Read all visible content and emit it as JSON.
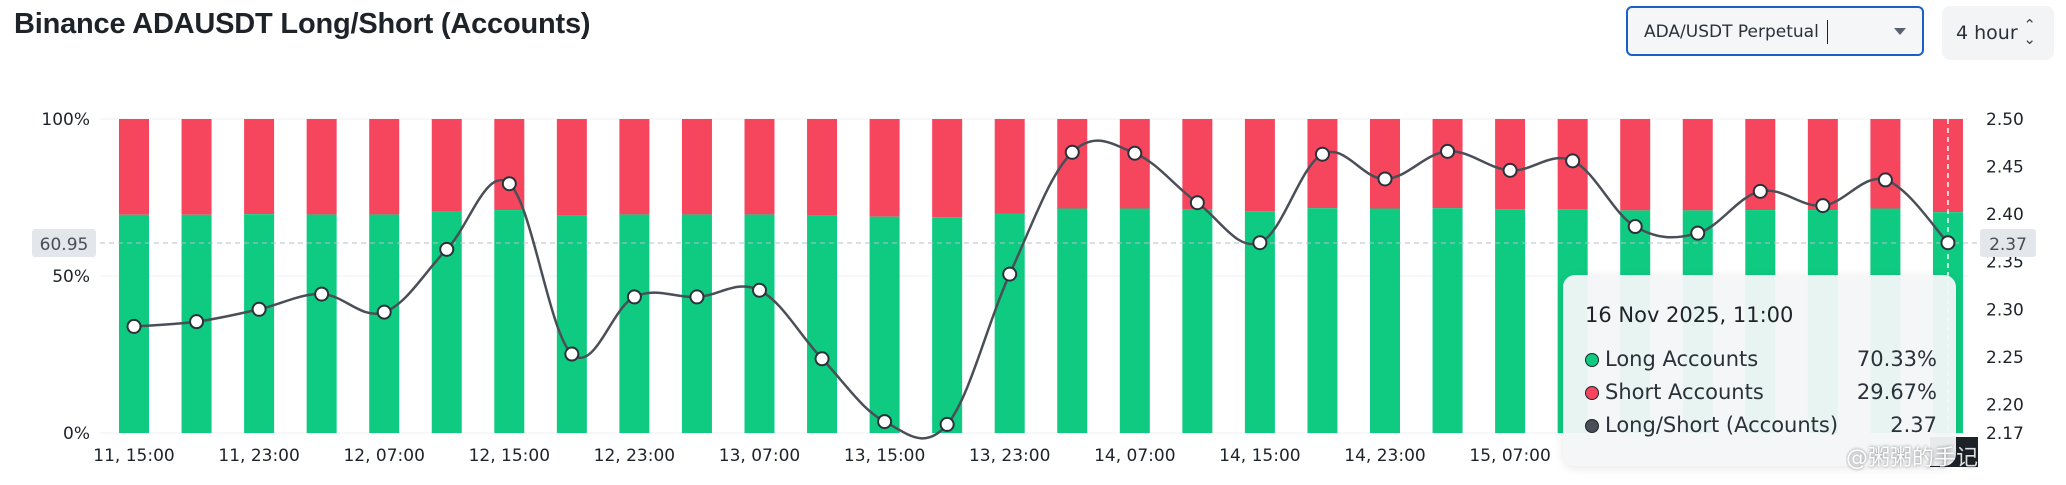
{
  "page": {
    "title": "Binance ADAUSDT Long/Short (Accounts)"
  },
  "controls": {
    "symbol_select": "ADA/USDT Perpetual",
    "interval_select": "4 hour"
  },
  "colors": {
    "long": "#0ecb81",
    "short": "#f6465d",
    "ratio_line": "#4a4f57",
    "axis_text": "#1e2329"
  },
  "chart_data": {
    "type": "bar",
    "stacked": true,
    "title": "",
    "left_axis": {
      "ticks": [
        "0%",
        "50%",
        "100%"
      ],
      "ylim": [
        0,
        100
      ]
    },
    "right_axis": {
      "ticks": [
        "2.17",
        "2.20",
        "2.25",
        "2.30",
        "2.35",
        "2.40",
        "2.45",
        "2.50"
      ],
      "ylim": [
        2.17,
        2.5
      ]
    },
    "x_tick_labels": [
      "11, 15:00",
      "11, 23:00",
      "12, 07:00",
      "12, 15:00",
      "12, 23:00",
      "13, 07:00",
      "13, 15:00",
      "13, 23:00",
      "14, 07:00",
      "14, 15:00",
      "14, 23:00",
      "15, 07:00"
    ],
    "categories": [
      "11, 15:00",
      "11, 19:00",
      "11, 23:00",
      "12, 03:00",
      "12, 07:00",
      "12, 11:00",
      "12, 15:00",
      "12, 19:00",
      "12, 23:00",
      "13, 03:00",
      "13, 07:00",
      "13, 11:00",
      "13, 15:00",
      "13, 19:00",
      "13, 23:00",
      "14, 03:00",
      "14, 07:00",
      "14, 11:00",
      "14, 15:00",
      "14, 19:00",
      "14, 23:00",
      "15, 03:00",
      "15, 07:00",
      "15, 11:00",
      "15, 15:00",
      "15, 19:00",
      "15, 23:00",
      "16, 03:00",
      "16, 07:00",
      "16, 11:00"
    ],
    "series": [
      {
        "name": "Long Accounts",
        "axis": "left",
        "values": [
          69.5,
          69.5,
          69.7,
          69.6,
          69.6,
          70.5,
          71.0,
          69.3,
          69.6,
          69.6,
          69.6,
          69.3,
          68.9,
          68.7,
          69.9,
          71.5,
          71.5,
          71.1,
          70.6,
          71.6,
          71.5,
          71.6,
          71.3,
          71.3,
          70.9,
          70.9,
          71.0,
          71.0,
          71.5,
          70.33
        ]
      },
      {
        "name": "Short Accounts",
        "axis": "left",
        "values": [
          30.5,
          30.5,
          30.3,
          30.4,
          30.4,
          29.5,
          29.0,
          30.7,
          30.4,
          30.4,
          30.4,
          30.7,
          31.1,
          31.3,
          30.1,
          28.5,
          28.5,
          28.9,
          29.4,
          28.4,
          28.5,
          28.4,
          28.7,
          28.7,
          29.1,
          29.1,
          29.0,
          29.0,
          28.5,
          29.67
        ]
      },
      {
        "name": "Long/Short (Accounts)",
        "axis": "right",
        "values": [
          2.282,
          2.287,
          2.3,
          2.316,
          2.297,
          2.363,
          2.432,
          2.253,
          2.313,
          2.313,
          2.32,
          2.248,
          2.182,
          2.179,
          2.337,
          2.465,
          2.464,
          2.412,
          2.37,
          2.463,
          2.437,
          2.466,
          2.446,
          2.456,
          2.387,
          2.38,
          2.424,
          2.409,
          2.436,
          2.37
        ]
      }
    ],
    "crosshair": {
      "left_value_label": "60.95",
      "right_value_label": "2.37"
    },
    "grid": true
  },
  "tooltip": {
    "date": "16 Nov 2025, 11:00",
    "rows": [
      {
        "label": "Long Accounts",
        "value": "70.33%",
        "color": "#0ecb81"
      },
      {
        "label": "Short Accounts",
        "value": "29.67%",
        "color": "#f6465d"
      },
      {
        "label": "Long/Short (Accounts)",
        "value": "2.37",
        "color": "#4a4f57"
      }
    ]
  },
  "watermark": {
    "text": "@粥粥的手记"
  }
}
